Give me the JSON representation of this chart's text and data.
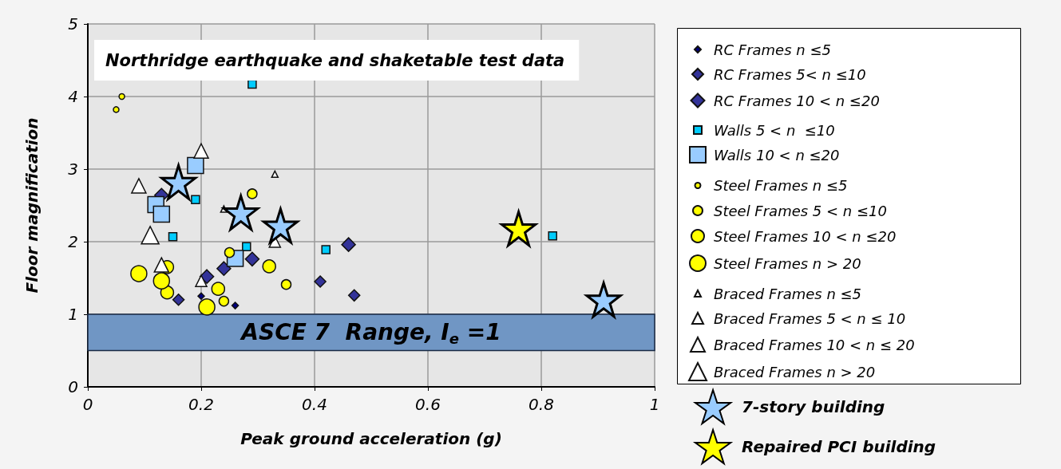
{
  "chart_data": {
    "type": "scatter",
    "xlabel": "Peak ground acceleration (g)",
    "ylabel": "Floor magnification",
    "xlim": [
      0,
      1
    ],
    "xticks": [
      0,
      0.2,
      0.4,
      0.6,
      0.8,
      1
    ],
    "ylim": [
      0,
      5
    ],
    "yticks": [
      0,
      1,
      2,
      3,
      4,
      5
    ],
    "grid": true,
    "legend": "right",
    "annotations": [
      "Northridge earthquake and shaketable test data"
    ],
    "bands": [
      {
        "axis": "y",
        "from": 0.5,
        "to": 1,
        "label": "ASCE 7  Range, I$_{e}$ =1",
        "color": "#7096c4"
      }
    ],
    "series": [
      {
        "name": "RC Frames n ≤5",
        "color": "#000080",
        "marker": "diamond",
        "x": [
          0.2,
          0.26
        ],
        "values": [
          1.25,
          1.12
        ]
      },
      {
        "name": "RC Frames 5< n ≤10",
        "color": "#333399",
        "marker": "diamond",
        "x": [
          0.16,
          0.41,
          0.47
        ],
        "values": [
          1.2,
          1.45,
          1.26
        ]
      },
      {
        "name": "RC Frames 10 < n ≤20",
        "color": "#333399",
        "marker": "diamond",
        "x": [
          0.21,
          0.24,
          0.29,
          0.46,
          0.13
        ],
        "values": [
          1.52,
          1.63,
          1.76,
          1.96,
          2.64
        ]
      },
      {
        "name": "Walls 5 < n  ≤10",
        "color": "#00ccff",
        "marker": "square",
        "x": [
          0.29,
          0.19,
          0.15,
          0.28,
          0.42,
          0.82
        ],
        "values": [
          4.17,
          2.58,
          2.07,
          1.93,
          1.89,
          2.08
        ]
      },
      {
        "name": "Walls 10 < n ≤20",
        "color": "#99ccff",
        "marker": "square",
        "x": [
          0.19,
          0.12,
          0.13,
          0.26
        ],
        "values": [
          3.05,
          2.51,
          2.38,
          1.77
        ]
      },
      {
        "name": "Steel Frames n ≤5",
        "color": "#ffff00",
        "marker": "circle",
        "x": [
          0.06,
          0.05
        ],
        "values": [
          4.0,
          3.82
        ]
      },
      {
        "name": "Steel Frames 5 < n ≤10",
        "color": "#ffff00",
        "marker": "circle",
        "x": [
          0.29,
          0.25,
          0.35,
          0.24
        ],
        "values": [
          2.66,
          1.85,
          1.41,
          1.18
        ]
      },
      {
        "name": "Steel Frames 10 < n ≤20",
        "color": "#ffff00",
        "marker": "circle",
        "x": [
          0.23,
          0.32,
          0.14,
          0.14
        ],
        "values": [
          1.35,
          1.66,
          1.3,
          1.65
        ]
      },
      {
        "name": "Steel Frames n > 20",
        "color": "#ffff00",
        "marker": "circle",
        "x": [
          0.09,
          0.13,
          0.21
        ],
        "values": [
          1.56,
          1.46,
          1.1
        ]
      },
      {
        "name": "Braced Frames n ≤5",
        "color": "#ffffff",
        "marker": "triangle",
        "x": [
          0.33,
          0.24
        ],
        "values": [
          2.93,
          2.45
        ]
      },
      {
        "name": "Braced Frames 5 < n ≤ 10",
        "color": "#ffffff",
        "marker": "triangle",
        "x": [
          0.2,
          0.33
        ],
        "values": [
          1.46,
          2.0
        ]
      },
      {
        "name": "Braced Frames 10 < n ≤ 20",
        "color": "#ffffff",
        "marker": "triangle",
        "x": [
          0.13,
          0.09,
          0.2
        ],
        "values": [
          1.68,
          2.77,
          3.25
        ]
      },
      {
        "name": "Braced Frames n > 20",
        "color": "#ffffff",
        "marker": "triangle",
        "x": [
          0.11
        ],
        "values": [
          2.09
        ]
      },
      {
        "name": "7-story building",
        "color": "#99ccff",
        "marker": "star",
        "x": [
          0.16,
          0.27,
          0.34,
          0.91
        ],
        "values": [
          2.82,
          2.4,
          2.22,
          1.2
        ]
      },
      {
        "name": "Repaired PCI building",
        "color": "#ffff00",
        "marker": "star",
        "x": [
          0.76
        ],
        "values": [
          2.18
        ]
      }
    ]
  }
}
